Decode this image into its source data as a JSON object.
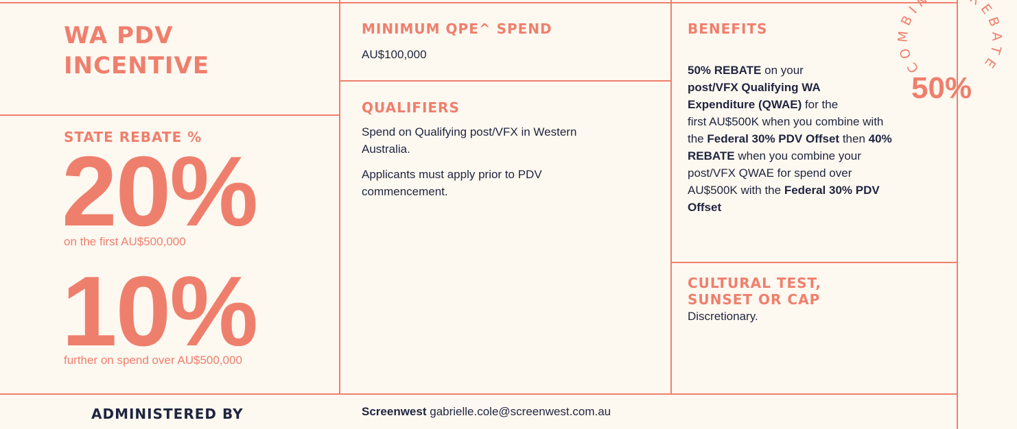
{
  "title": "WA PDV INCENTIVE",
  "state_rebate": {
    "heading": "STATE REBATE %",
    "tiers": [
      {
        "rate": "20%",
        "description": "on the first AU$500,000"
      },
      {
        "rate": "10%",
        "description": "further on spend over AU$500,000"
      }
    ]
  },
  "minimum_spend": {
    "heading": "MINIMUM QPE^ SPEND",
    "text": "AU$100,000"
  },
  "qualifiers": {
    "heading": "QUALIFIERS",
    "paragraphs": [
      "Spend on Qualifying post/VFX in Western Australia.",
      "Applicants must apply prior to PDV commencement."
    ]
  },
  "benefits": {
    "heading": "BENEFITS",
    "segments": [
      {
        "text": "50% REBATE",
        "bold": true
      },
      {
        "text": " on your ",
        "bold": false
      },
      {
        "text": "post/VFX Qualifying WA Expenditure (QWAE)",
        "bold": true
      },
      {
        "text": " for the first AU$500K when you combine with the ",
        "bold": false
      },
      {
        "text": "Federal 30% PDV Offset",
        "bold": true
      },
      {
        "text": " then ",
        "bold": false
      },
      {
        "text": "40% REBATE",
        "bold": true
      },
      {
        "text": " when you combine your post/VFX QWAE for spend over AU$500K with the ",
        "bold": false
      },
      {
        "text": "Federal 30% PDV Offset",
        "bold": true
      }
    ]
  },
  "badge": {
    "arc_text": "COMBINED REBATE",
    "value": "50%"
  },
  "cultural_test": {
    "heading": "CULTURAL TEST, SUNSET OR CAP",
    "text": "Discretionary."
  },
  "administered_by": {
    "heading": "ADMINISTERED BY",
    "organisation": "Screenwest",
    "email": "gabrielle.cole@screenwest.com.au"
  }
}
